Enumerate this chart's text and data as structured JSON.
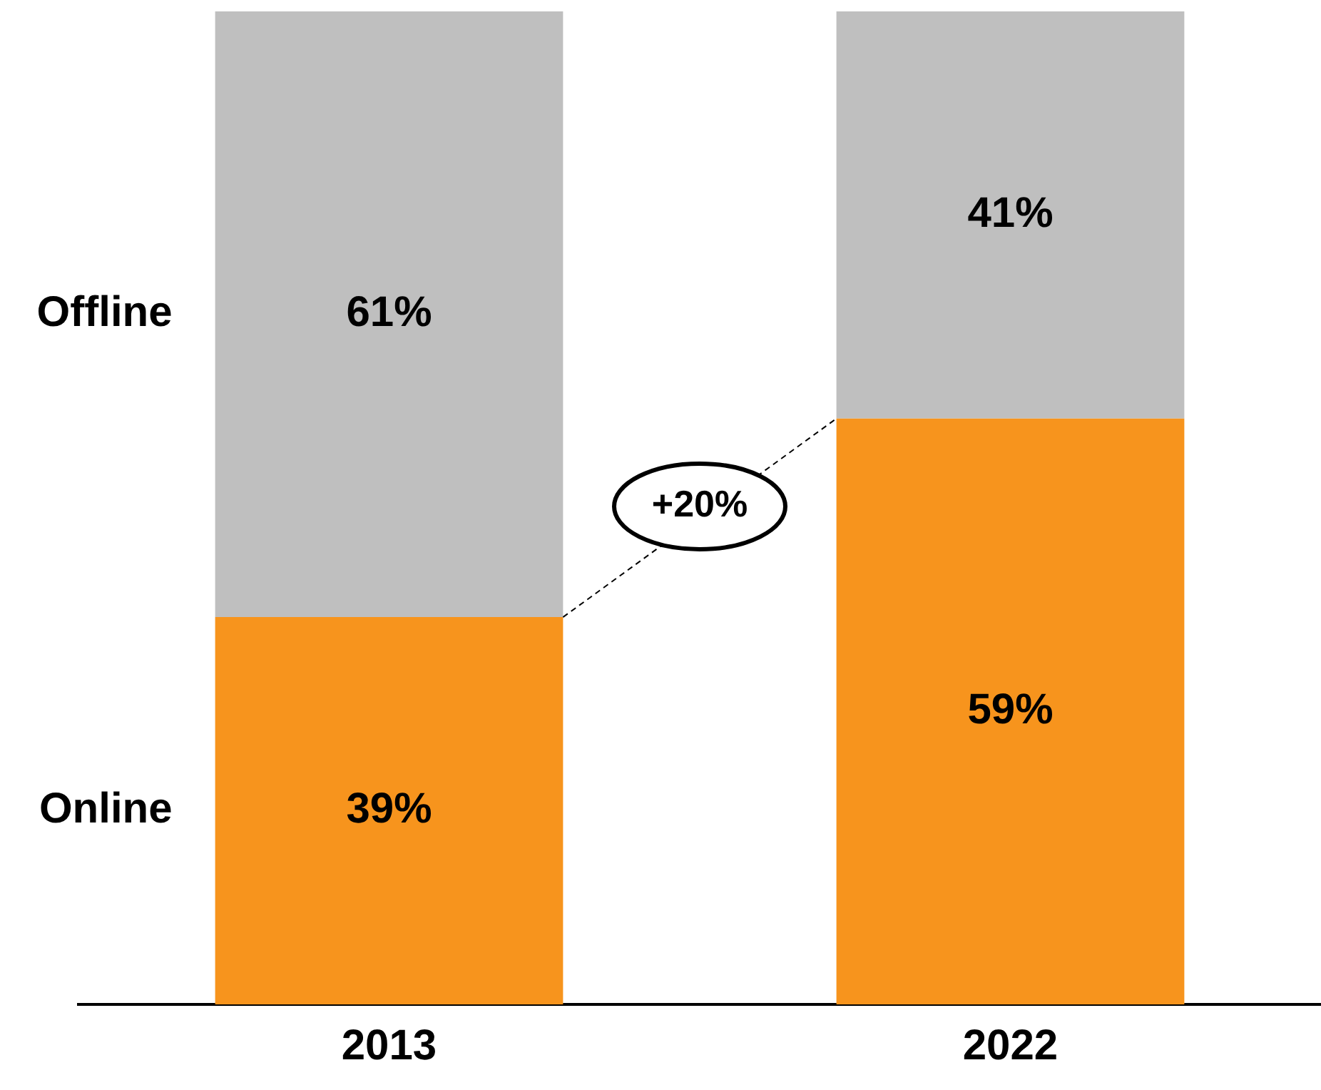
{
  "chart_data": {
    "type": "bar",
    "stacked": true,
    "categories": [
      "2013",
      "2022"
    ],
    "series": [
      {
        "name": "Online",
        "color": "#f7941d",
        "values": [
          39,
          59
        ],
        "value_labels": [
          "39%",
          "59%"
        ]
      },
      {
        "name": "Offline",
        "color": "#bfbfbf",
        "values": [
          61,
          41
        ],
        "value_labels": [
          "61%",
          "41%"
        ]
      }
    ],
    "ylim": [
      0,
      100
    ],
    "tick_labels": "x",
    "grid": false,
    "legend": false,
    "annotations": [
      "+20%"
    ]
  }
}
